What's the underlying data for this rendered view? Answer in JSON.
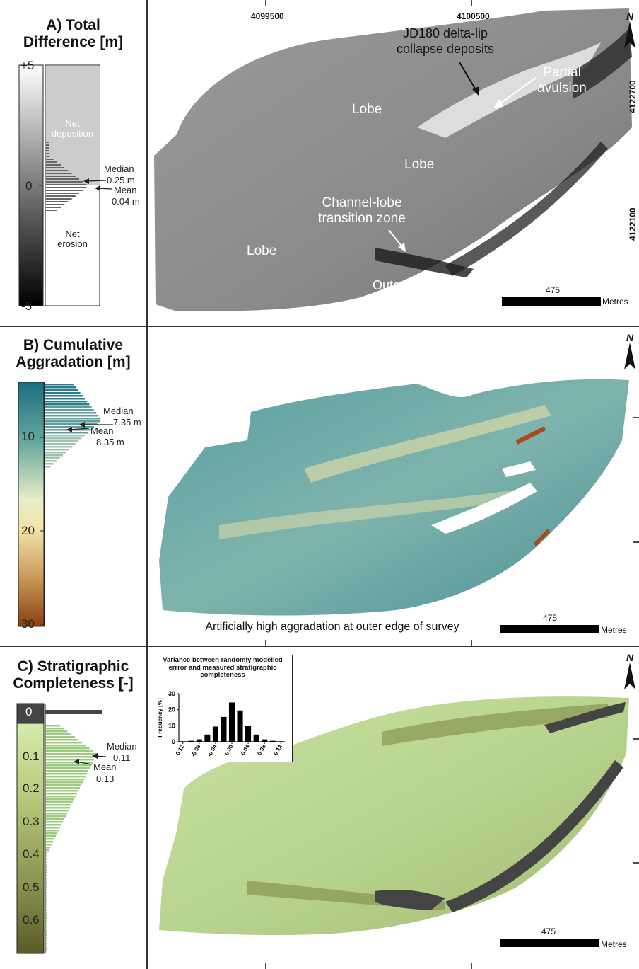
{
  "panel_a": {
    "title_line1": "A) Total",
    "title_line2": "Difference [m]",
    "scale_ticks": [
      "+5",
      "0",
      "-5"
    ],
    "zone_deposition_line1": "Net",
    "zone_deposition_line2": "deposition",
    "zone_erosion_line1": "Net",
    "zone_erosion_line2": "erosion",
    "median_label": "Median",
    "median_value": "0.25 m",
    "mean_label": "Mean",
    "mean_value": "0.04 m",
    "coord_x1": "4099500",
    "coord_x2": "4100500",
    "coord_y1": "4122700",
    "coord_y2": "4122100",
    "annot_collapse_line1": "JD180 delta-lip",
    "annot_collapse_line2": "collapse deposits",
    "annot_avulsion_line1": "Partial",
    "annot_avulsion_line2": "avulsion",
    "annot_lobe": "Lobe",
    "annot_transition_line1": "Channel-lobe",
    "annot_transition_line2": "transition zone",
    "annot_outer_bend": "Outer bend erosion",
    "scale_value": "475",
    "scale_unit": "Metres",
    "north_label": "N"
  },
  "panel_b": {
    "title_line1": "B) Cumulative",
    "title_line2": "Aggradation [m]",
    "scale_ticks": [
      "10",
      "20",
      "30"
    ],
    "median_label": "Median",
    "median_value": "7.35 m",
    "mean_label": "Mean",
    "mean_value": "8.35 m",
    "annot_edge": "Artificially high aggradation at outer edge of survey",
    "scale_value": "475",
    "scale_unit": "Metres",
    "north_label": "N"
  },
  "panel_c": {
    "title_line1": "C) Stratigraphic",
    "title_line2": "Completeness [-]",
    "scale_ticks": [
      "0",
      "0.1",
      "0.2",
      "0.3",
      "0.4",
      "0.5",
      "0.6"
    ],
    "median_label": "Median",
    "median_value": "0.11",
    "mean_label": "Mean",
    "mean_value": "0.13",
    "scale_value": "475",
    "scale_unit": "Metres",
    "north_label": "N"
  },
  "chart_data": {
    "type": "bar",
    "title": "Variance between randomly modelled errror and measured stratigraphic completeness",
    "ylabel": "Frequency [%]",
    "xlabel": "",
    "categories": [
      "-0.12",
      "-0.10",
      "-0.08",
      "-0.06",
      "-0.04",
      "-0.02",
      "0.00",
      "0.02",
      "0.04",
      "0.06",
      "0.08",
      "0.10",
      "0.12"
    ],
    "tick_labels": [
      "-0.12",
      "-0.08",
      "-0.04",
      "0.00",
      "0.04",
      "0.08",
      "0.12"
    ],
    "values": [
      0.3,
      0.6,
      1.5,
      4.5,
      9.5,
      15.5,
      24.5,
      19.5,
      10,
      4.5,
      1.5,
      0.6,
      0.3
    ],
    "ylim": [
      0,
      30
    ],
    "yticks": [
      0,
      10,
      20,
      30
    ],
    "grid": false
  }
}
